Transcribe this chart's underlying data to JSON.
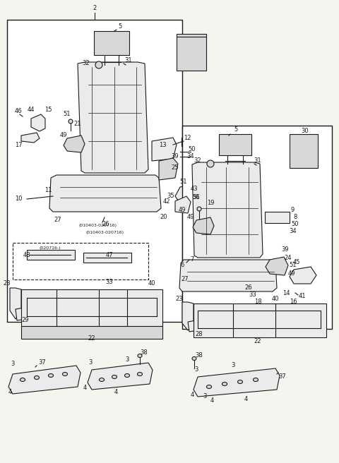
{
  "bg_color": "#f5f5f0",
  "line_color": "#1a1a1a",
  "fig_width": 4.8,
  "fig_height": 6.56,
  "dpi": 100,
  "gray_fill": "#d8d8d8",
  "light_fill": "#ebebeb",
  "white_fill": "#ffffff"
}
